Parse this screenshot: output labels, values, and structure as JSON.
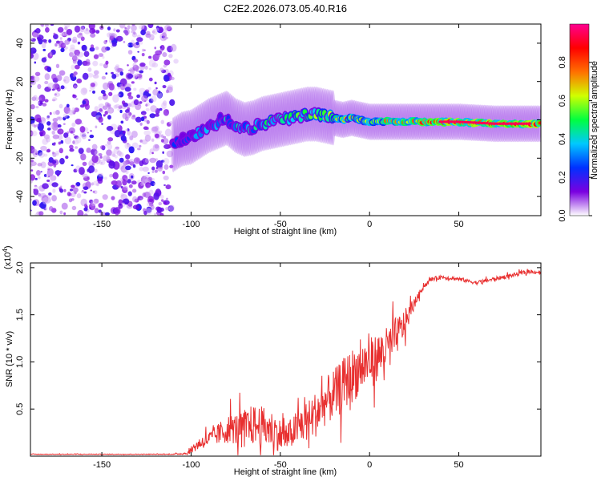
{
  "title": "C2E2.2026.073.05.40.R16",
  "chart_data": [
    {
      "type": "heatmap",
      "name": "spectrogram",
      "xlabel": "Height of straight line (km)",
      "ylabel": "Frequency (Hz)",
      "xlim": [
        -190,
        96
      ],
      "ylim": [
        -50,
        50
      ],
      "xticks": [
        -150,
        -100,
        -50,
        0,
        50
      ],
      "xtick_labels": [
        "-150",
        "-100",
        "-50",
        "0",
        "50"
      ],
      "yticks": [
        -40,
        -20,
        0,
        20,
        40
      ],
      "ytick_labels": [
        "-40",
        "-20",
        "0",
        "20",
        "40"
      ],
      "noise_region_x": [
        -190,
        -108
      ],
      "ridge_points": [
        [
          -110,
          -13
        ],
        [
          -105,
          -10
        ],
        [
          -100,
          -9
        ],
        [
          -95,
          -6
        ],
        [
          -90,
          -3
        ],
        [
          -85,
          -1
        ],
        [
          -80,
          1
        ],
        [
          -75,
          -3
        ],
        [
          -70,
          -5
        ],
        [
          -65,
          -4
        ],
        [
          -60,
          -2
        ],
        [
          -55,
          -1
        ],
        [
          -50,
          0
        ],
        [
          -45,
          1
        ],
        [
          -40,
          2
        ],
        [
          -35,
          3
        ],
        [
          -30,
          3
        ],
        [
          -25,
          2
        ],
        [
          -20,
          1
        ],
        [
          -15,
          0
        ],
        [
          -10,
          1
        ],
        [
          -5,
          0
        ],
        [
          0,
          -1
        ],
        [
          10,
          -1
        ],
        [
          20,
          -1
        ],
        [
          30,
          -1
        ],
        [
          50,
          -1
        ],
        [
          70,
          -2
        ],
        [
          90,
          -2
        ],
        [
          96,
          -2
        ]
      ],
      "colorbar": {
        "label": "Normalized spectral amplitude",
        "range": [
          0,
          1
        ],
        "ticks": [
          0.0,
          0.2,
          0.4,
          0.6,
          0.8
        ],
        "tick_labels": [
          "0.0",
          "0.2",
          "0.4",
          "0.6",
          "0.8"
        ],
        "colors": [
          "#ffffff",
          "#7a00e0",
          "#0030ff",
          "#00c8ff",
          "#00ff40",
          "#d0ff00",
          "#ff7000",
          "#ff0000",
          "#ff0090"
        ]
      }
    },
    {
      "type": "line",
      "name": "snr",
      "xlabel": "Height of straight line (km)",
      "ylabel": "SNR (10 * v/v)",
      "yscale_label": "(x10",
      "yscale_exp": "4",
      "xlim": [
        -190,
        96
      ],
      "ylim": [
        0,
        2.05
      ],
      "xticks": [
        -150,
        -100,
        -50,
        0,
        50
      ],
      "xtick_labels": [
        "-150",
        "-100",
        "-50",
        "0",
        "50"
      ],
      "yticks": [
        0.5,
        1.0,
        1.5,
        2.0
      ],
      "ytick_labels": [
        "0.5",
        "1.0",
        "1.5",
        "2.0"
      ],
      "line_color": "#e83030",
      "x": [
        -190,
        -170,
        -150,
        -130,
        -110,
        -102,
        -98,
        -94,
        -90,
        -86,
        -82,
        -78,
        -74,
        -70,
        -66,
        -62,
        -58,
        -54,
        -50,
        -46,
        -42,
        -38,
        -34,
        -30,
        -26,
        -22,
        -18,
        -14,
        -10,
        -6,
        -2,
        2,
        6,
        10,
        14,
        18,
        22,
        26,
        30,
        35,
        40,
        45,
        50,
        55,
        60,
        65,
        70,
        75,
        80,
        85,
        90,
        96
      ],
      "y": [
        0.02,
        0.02,
        0.02,
        0.02,
        0.02,
        0.03,
        0.1,
        0.15,
        0.18,
        0.22,
        0.26,
        0.3,
        0.28,
        0.3,
        0.33,
        0.32,
        0.3,
        0.28,
        0.22,
        0.2,
        0.28,
        0.34,
        0.38,
        0.45,
        0.55,
        0.62,
        0.68,
        0.78,
        0.85,
        0.92,
        0.98,
        1.02,
        1.08,
        1.15,
        1.25,
        1.35,
        1.5,
        1.65,
        1.8,
        1.88,
        1.9,
        1.89,
        1.88,
        1.86,
        1.84,
        1.86,
        1.88,
        1.9,
        1.92,
        1.94,
        1.96,
        1.95
      ],
      "noise_amplitude": [
        0.005,
        0.005,
        0.005,
        0.005,
        0.005,
        0.02,
        0.08,
        0.1,
        0.12,
        0.15,
        0.2,
        0.22,
        0.25,
        0.28,
        0.3,
        0.32,
        0.3,
        0.28,
        0.25,
        0.22,
        0.25,
        0.3,
        0.32,
        0.35,
        0.35,
        0.38,
        0.4,
        0.4,
        0.42,
        0.4,
        0.38,
        0.36,
        0.35,
        0.32,
        0.3,
        0.25,
        0.15,
        0.06,
        0.04,
        0.03,
        0.03,
        0.03,
        0.03,
        0.03,
        0.03,
        0.03,
        0.03,
        0.03,
        0.03,
        0.03,
        0.03,
        0.03
      ]
    }
  ]
}
